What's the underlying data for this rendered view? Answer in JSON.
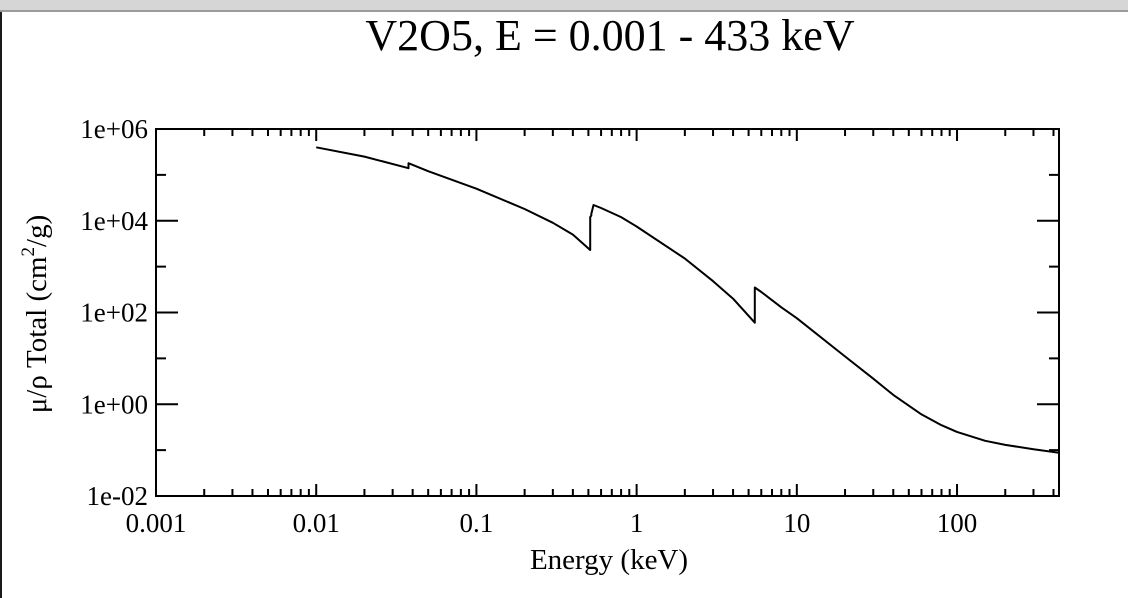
{
  "chart_data": {
    "type": "line",
    "title": "V2O5, E = 0.001 - 433 keV",
    "xlabel": "Energy (keV)",
    "ylabel_main": "μ/ρ Total (cm",
    "ylabel_sup": "2",
    "ylabel_end": "/g)",
    "x_scale": "log",
    "y_scale": "log",
    "xlim": [
      0.001,
      433
    ],
    "ylim": [
      0.01,
      1000000
    ],
    "x_tick_values": [
      0.001,
      0.01,
      0.1,
      1,
      10,
      100
    ],
    "x_tick_labels": [
      "0.001",
      "0.01",
      "0.1",
      "1",
      "10",
      "100"
    ],
    "y_tick_values": [
      0.01,
      1,
      100,
      10000,
      1000000
    ],
    "y_tick_labels": [
      "1e-02",
      "1e+00",
      "1e+02",
      "1e+04",
      "1e+06"
    ],
    "grid": false,
    "legend": "none",
    "series": [
      {
        "values": [
          [
            0.01,
            400000
          ],
          [
            0.02,
            250000
          ],
          [
            0.0377,
            140000
          ],
          [
            0.0377,
            180000
          ],
          [
            0.05,
            120000
          ],
          [
            0.1,
            50000
          ],
          [
            0.2,
            18000
          ],
          [
            0.3,
            9000
          ],
          [
            0.4,
            5000
          ],
          [
            0.5129,
            2300
          ],
          [
            0.5129,
            12000
          ],
          [
            0.521,
            13000
          ],
          [
            0.5212,
            14000
          ],
          [
            0.5378,
            22000
          ],
          [
            0.6,
            19000
          ],
          [
            0.8,
            12000
          ],
          [
            1.0,
            7500
          ],
          [
            2.0,
            1500
          ],
          [
            3.0,
            480
          ],
          [
            4.0,
            200
          ],
          [
            5.465,
            60
          ],
          [
            5.465,
            350
          ],
          [
            6.0,
            280
          ],
          [
            8.0,
            130
          ],
          [
            10.0,
            75
          ],
          [
            20.0,
            11
          ],
          [
            30.0,
            3.6
          ],
          [
            40.0,
            1.6
          ],
          [
            60.0,
            0.6
          ],
          [
            80.0,
            0.35
          ],
          [
            100.0,
            0.25
          ],
          [
            150.0,
            0.16
          ],
          [
            200.0,
            0.13
          ],
          [
            300.0,
            0.105
          ],
          [
            433.0,
            0.088
          ]
        ]
      }
    ],
    "colors": {
      "line": "#000000",
      "axes": "#000000",
      "background": "#ffffff"
    }
  }
}
